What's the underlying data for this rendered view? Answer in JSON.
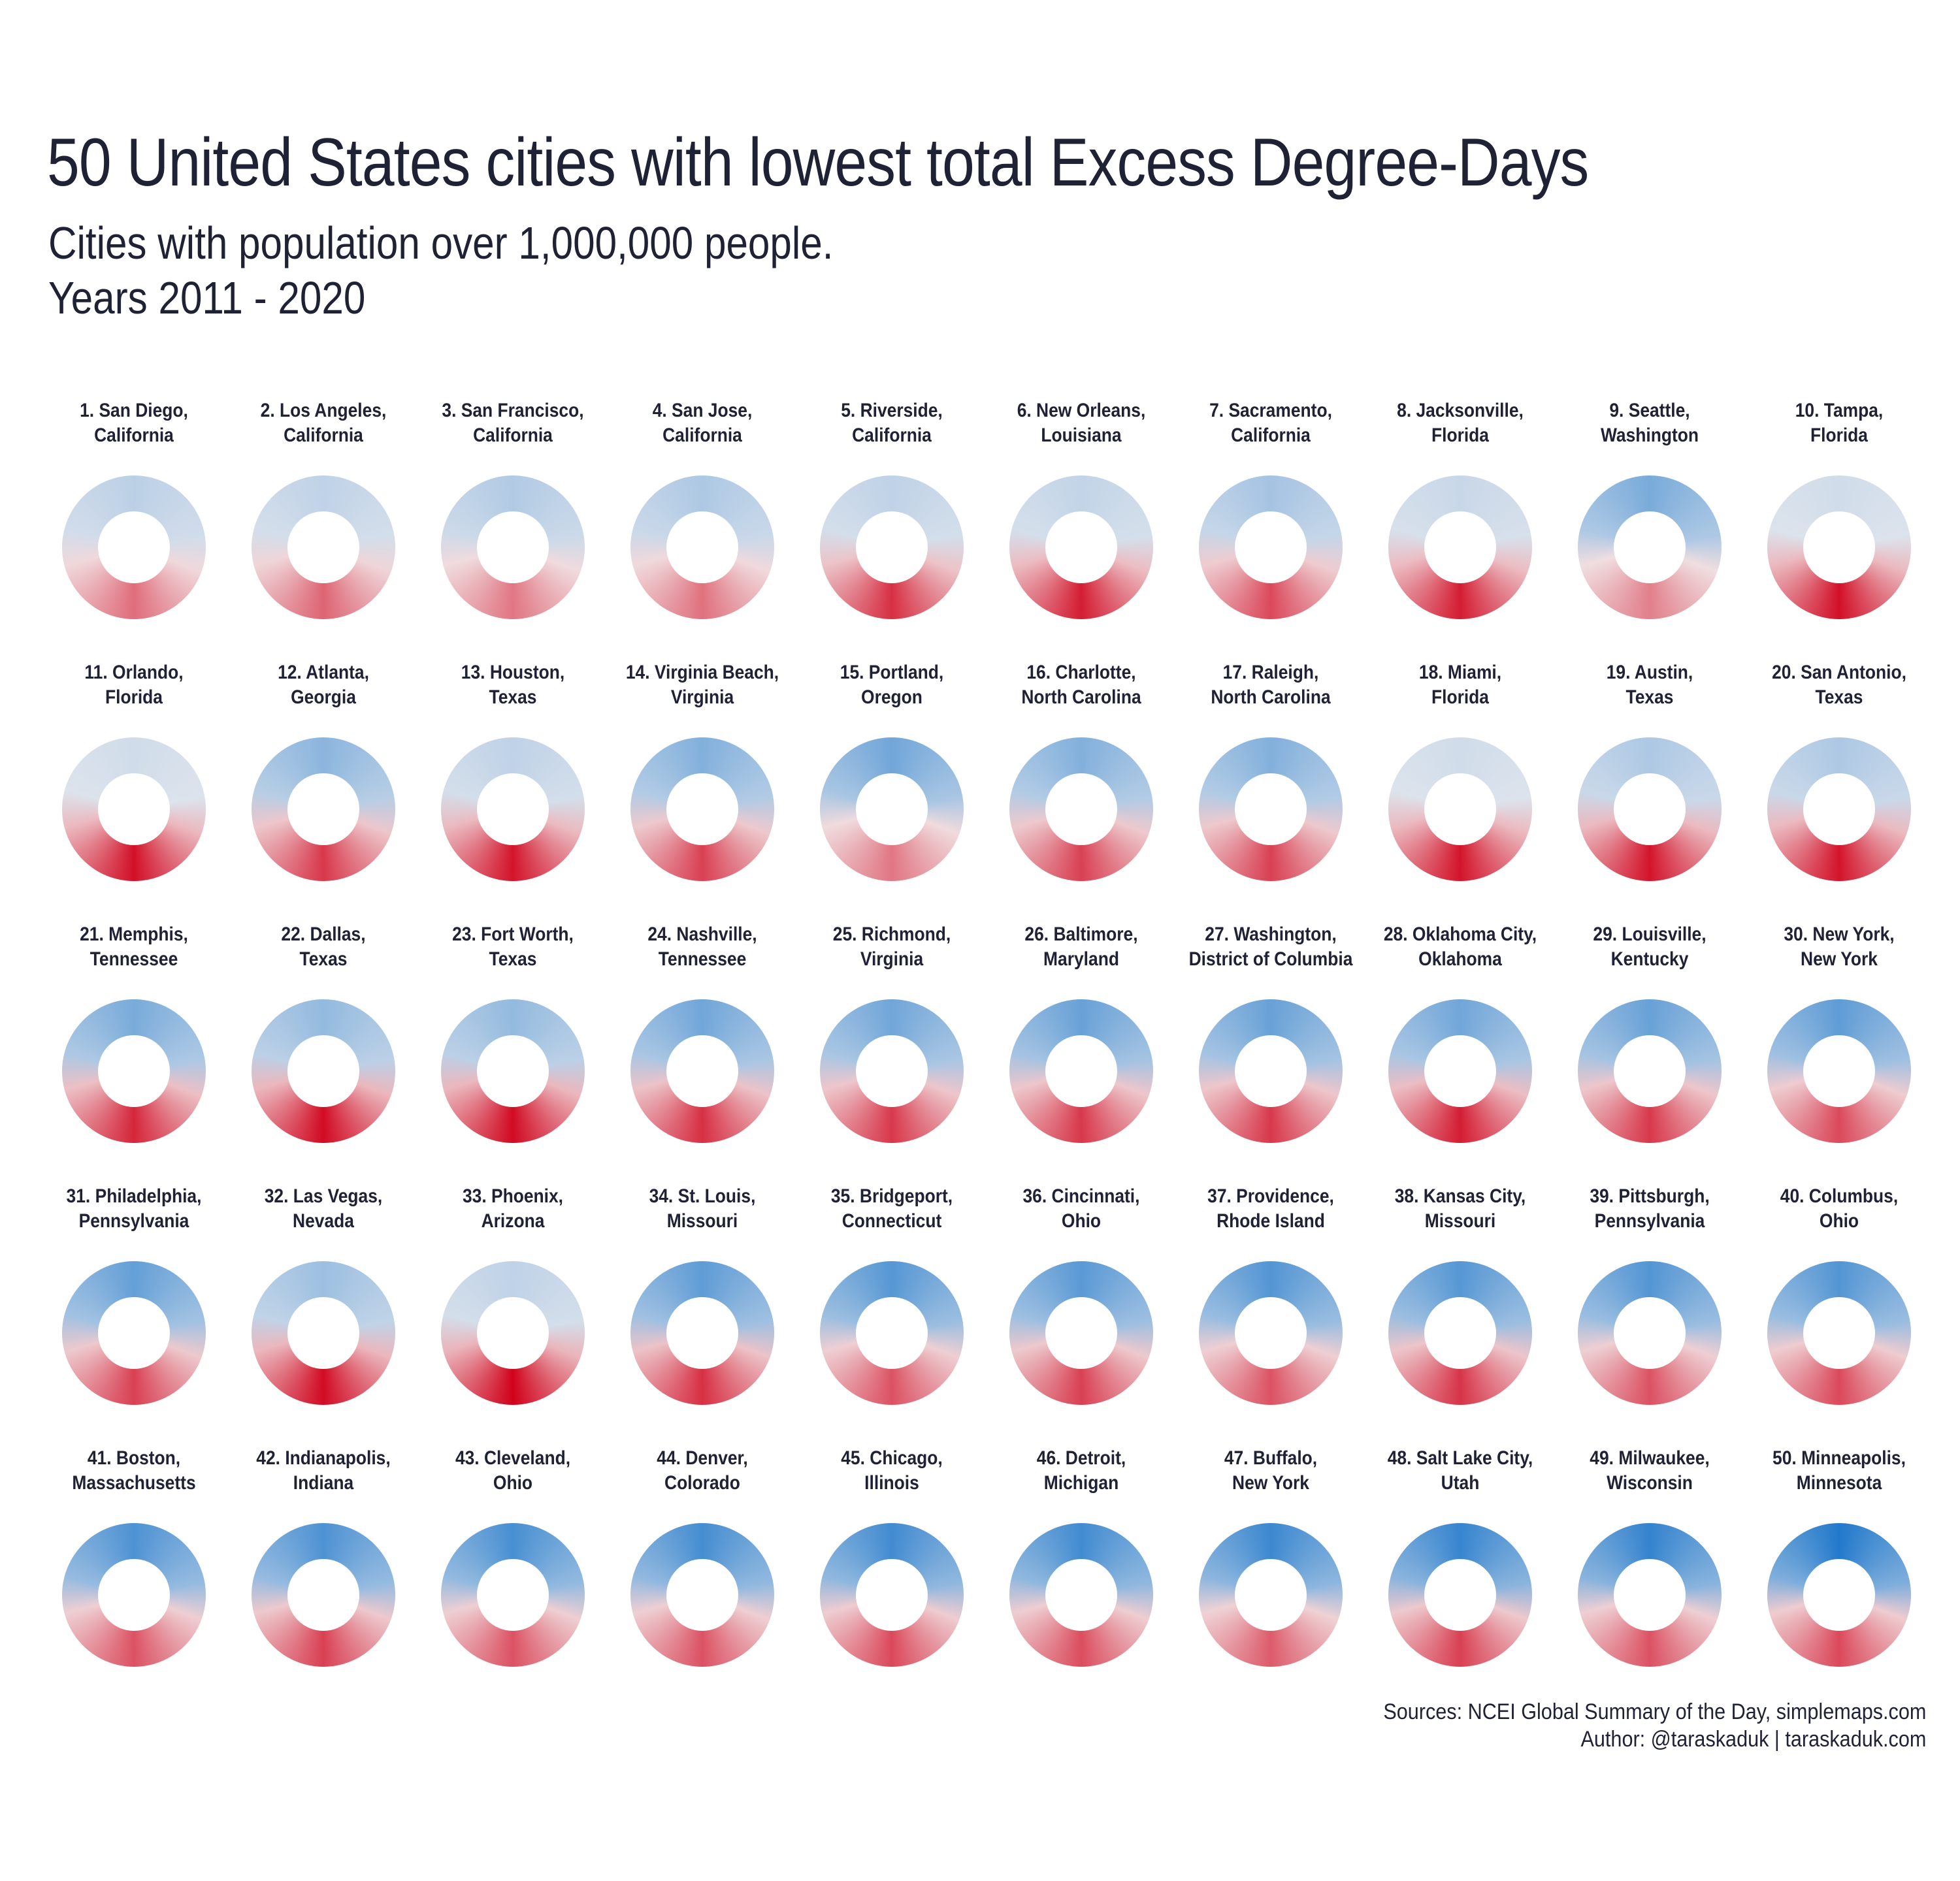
{
  "title": "50 United States cities with lowest total Excess Degree-Days",
  "subtitle": {
    "line1": "Cities with population over 1,000,000 people.",
    "line2": "Years 2011 - 2020"
  },
  "caption": {
    "sources": "Sources: NCEI Global Summary of the Day, simplemaps.com",
    "author": "Author: @taraskaduk | taraskaduk.com"
  },
  "colors": {
    "hot": "#d0021b",
    "neutral": "#f3f0f0",
    "cold": "#0b6cc7",
    "text": "#1f2134"
  },
  "chart_data": {
    "type": "radial-heatmap",
    "title": "50 United States cities with lowest total Excess Degree-Days",
    "cities": [
      {
        "rank": 1,
        "city": "San Diego,",
        "state": "California",
        "hot": 0.4,
        "cold": 0.12
      },
      {
        "rank": 2,
        "city": "Los Angeles,",
        "state": "California",
        "hot": 0.45,
        "cold": 0.1
      },
      {
        "rank": 3,
        "city": "San Francisco,",
        "state": "California",
        "hot": 0.35,
        "cold": 0.18
      },
      {
        "rank": 4,
        "city": "San Jose,",
        "state": "California",
        "hot": 0.38,
        "cold": 0.2
      },
      {
        "rank": 5,
        "city": "Riverside,",
        "state": "California",
        "hot": 0.75,
        "cold": 0.1
      },
      {
        "rank": 6,
        "city": "New Orleans,",
        "state": "Louisiana",
        "hot": 0.85,
        "cold": 0.08
      },
      {
        "rank": 7,
        "city": "Sacramento,",
        "state": "California",
        "hot": 0.6,
        "cold": 0.25
      },
      {
        "rank": 8,
        "city": "Jacksonville,",
        "state": "Florida",
        "hot": 0.85,
        "cold": 0.05
      },
      {
        "rank": 9,
        "city": "Seattle,",
        "state": "Washington",
        "hot": 0.3,
        "cold": 0.5
      },
      {
        "rank": 10,
        "city": "Tampa,",
        "state": "Florida",
        "hot": 0.92,
        "cold": 0.0
      },
      {
        "rank": 11,
        "city": "Orlando,",
        "state": "Florida",
        "hot": 0.92,
        "cold": 0.0
      },
      {
        "rank": 12,
        "city": "Atlanta,",
        "state": "Georgia",
        "hot": 0.7,
        "cold": 0.4
      },
      {
        "rank": 13,
        "city": "Houston,",
        "state": "Texas",
        "hot": 0.9,
        "cold": 0.1
      },
      {
        "rank": 14,
        "city": "Virginia Beach,",
        "state": "Virginia",
        "hot": 0.65,
        "cold": 0.45
      },
      {
        "rank": 15,
        "city": "Portland,",
        "state": "Oregon",
        "hot": 0.35,
        "cold": 0.55
      },
      {
        "rank": 16,
        "city": "Charlotte,",
        "state": "North Carolina",
        "hot": 0.65,
        "cold": 0.45
      },
      {
        "rank": 17,
        "city": "Raleigh,",
        "state": "North Carolina",
        "hot": 0.65,
        "cold": 0.45
      },
      {
        "rank": 18,
        "city": "Miami,",
        "state": "Florida",
        "hot": 0.9,
        "cold": 0.0
      },
      {
        "rank": 19,
        "city": "Austin,",
        "state": "Texas",
        "hot": 0.9,
        "cold": 0.2
      },
      {
        "rank": 20,
        "city": "San Antonio,",
        "state": "Texas",
        "hot": 0.9,
        "cold": 0.2
      },
      {
        "rank": 21,
        "city": "Memphis,",
        "state": "Tennessee",
        "hot": 0.8,
        "cold": 0.5
      },
      {
        "rank": 22,
        "city": "Dallas,",
        "state": "Texas",
        "hot": 0.95,
        "cold": 0.35
      },
      {
        "rank": 23,
        "city": "Fort Worth,",
        "state": "Texas",
        "hot": 0.95,
        "cold": 0.35
      },
      {
        "rank": 24,
        "city": "Nashville,",
        "state": "Tennessee",
        "hot": 0.75,
        "cold": 0.55
      },
      {
        "rank": 25,
        "city": "Richmond,",
        "state": "Virginia",
        "hot": 0.7,
        "cold": 0.55
      },
      {
        "rank": 26,
        "city": "Baltimore,",
        "state": "Maryland",
        "hot": 0.7,
        "cold": 0.6
      },
      {
        "rank": 27,
        "city": "Washington,",
        "state": "District of Columbia",
        "hot": 0.7,
        "cold": 0.6
      },
      {
        "rank": 28,
        "city": "Oklahoma City,",
        "state": "Oklahoma",
        "hot": 0.85,
        "cold": 0.55
      },
      {
        "rank": 29,
        "city": "Louisville,",
        "state": "Kentucky",
        "hot": 0.7,
        "cold": 0.6
      },
      {
        "rank": 30,
        "city": "New York,",
        "state": "New York",
        "hot": 0.6,
        "cold": 0.65
      },
      {
        "rank": 31,
        "city": "Philadelphia,",
        "state": "Pennsylvania",
        "hot": 0.65,
        "cold": 0.62
      },
      {
        "rank": 32,
        "city": "Las Vegas,",
        "state": "Nevada",
        "hot": 0.95,
        "cold": 0.3
      },
      {
        "rank": 33,
        "city": "Phoenix,",
        "state": "Arizona",
        "hot": 1.0,
        "cold": 0.1
      },
      {
        "rank": 34,
        "city": "St. Louis,",
        "state": "Missouri",
        "hot": 0.75,
        "cold": 0.65
      },
      {
        "rank": 35,
        "city": "Bridgeport,",
        "state": "Connecticut",
        "hot": 0.55,
        "cold": 0.7
      },
      {
        "rank": 36,
        "city": "Cincinnati,",
        "state": "Ohio",
        "hot": 0.65,
        "cold": 0.68
      },
      {
        "rank": 37,
        "city": "Providence,",
        "state": "Rhode Island",
        "hot": 0.55,
        "cold": 0.72
      },
      {
        "rank": 38,
        "city": "Kansas City,",
        "state": "Missouri",
        "hot": 0.72,
        "cold": 0.7
      },
      {
        "rank": 39,
        "city": "Pittsburgh,",
        "state": "Pennsylvania",
        "hot": 0.55,
        "cold": 0.72
      },
      {
        "rank": 40,
        "city": "Columbus,",
        "state": "Ohio",
        "hot": 0.6,
        "cold": 0.72
      },
      {
        "rank": 41,
        "city": "Boston,",
        "state": "Massachusetts",
        "hot": 0.55,
        "cold": 0.75
      },
      {
        "rank": 42,
        "city": "Indianapolis,",
        "state": "Indiana",
        "hot": 0.65,
        "cold": 0.75
      },
      {
        "rank": 43,
        "city": "Cleveland,",
        "state": "Ohio",
        "hot": 0.55,
        "cold": 0.78
      },
      {
        "rank": 44,
        "city": "Denver,",
        "state": "Colorado",
        "hot": 0.55,
        "cold": 0.8
      },
      {
        "rank": 45,
        "city": "Chicago,",
        "state": "Illinois",
        "hot": 0.6,
        "cold": 0.82
      },
      {
        "rank": 46,
        "city": "Detroit,",
        "state": "Michigan",
        "hot": 0.58,
        "cold": 0.82
      },
      {
        "rank": 47,
        "city": "Buffalo,",
        "state": "New York",
        "hot": 0.5,
        "cold": 0.85
      },
      {
        "rank": 48,
        "city": "Salt Lake City,",
        "state": "Utah",
        "hot": 0.65,
        "cold": 0.88
      },
      {
        "rank": 49,
        "city": "Milwaukee,",
        "state": "Wisconsin",
        "hot": 0.55,
        "cold": 0.9
      },
      {
        "rank": 50,
        "city": "Minneapolis,",
        "state": "Minnesota",
        "hot": 0.6,
        "cold": 1.0
      }
    ]
  }
}
